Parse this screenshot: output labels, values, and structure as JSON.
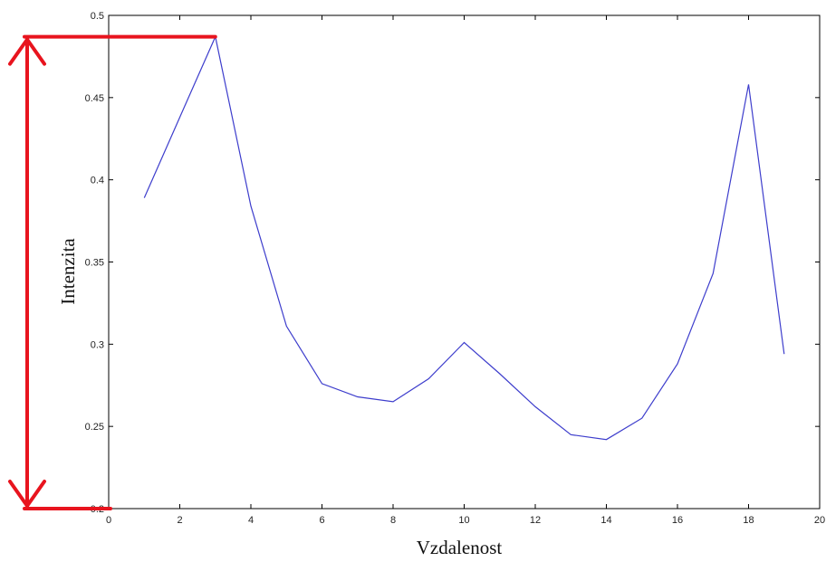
{
  "chart_data": {
    "type": "line",
    "title": "",
    "xlabel": "Vzdalenost",
    "ylabel": "Intenzita",
    "xlim": [
      0,
      20
    ],
    "ylim": [
      0.2,
      0.5
    ],
    "xticks": [
      0,
      2,
      4,
      6,
      8,
      10,
      12,
      14,
      16,
      18,
      20
    ],
    "yticks": [
      0.2,
      0.25,
      0.3,
      0.35,
      0.4,
      0.45,
      0.5
    ],
    "xtick_labels": [
      "0",
      "2",
      "4",
      "6",
      "8",
      "10",
      "12",
      "14",
      "16",
      "18",
      "20"
    ],
    "ytick_labels": [
      "0.2",
      "0.25",
      "0.3",
      "0.35",
      "0.4",
      "0.45",
      "0.5"
    ],
    "grid": false,
    "series": [
      {
        "color": "#3d3dcc",
        "x": [
          1,
          2,
          3,
          4,
          5,
          6,
          7,
          8,
          9,
          10,
          11,
          12,
          13,
          14,
          15,
          16,
          17,
          18,
          19
        ],
        "y": [
          0.389,
          0.438,
          0.487,
          0.384,
          0.311,
          0.276,
          0.268,
          0.265,
          0.279,
          0.301,
          0.282,
          0.262,
          0.245,
          0.242,
          0.255,
          0.288,
          0.343,
          0.458,
          0.294
        ]
      }
    ],
    "annotation": {
      "type": "double-headed-arrow",
      "color": "#e8141e",
      "y_top": 0.487,
      "y_bottom": 0.2,
      "x_end": 3
    }
  }
}
